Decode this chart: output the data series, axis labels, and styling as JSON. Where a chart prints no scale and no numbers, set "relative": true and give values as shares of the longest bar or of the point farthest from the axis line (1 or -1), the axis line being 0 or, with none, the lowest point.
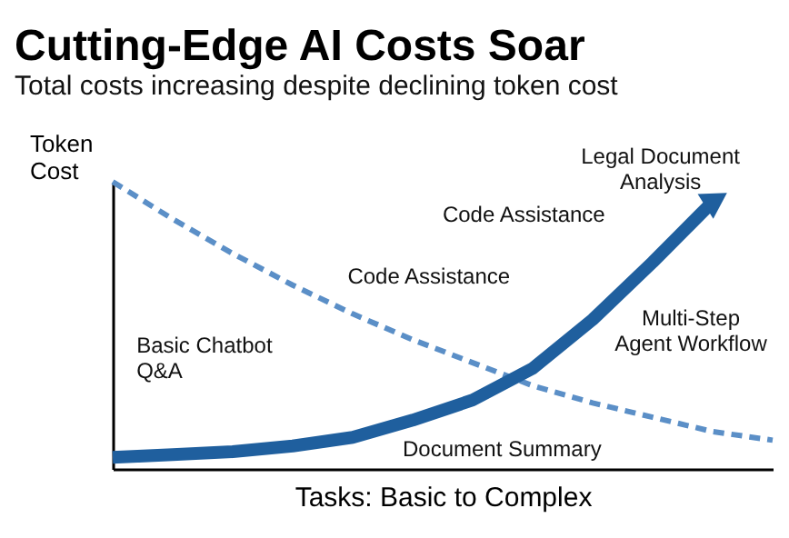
{
  "chart_data": {
    "type": "line",
    "title": "Cutting-Edge AI Costs Soar",
    "subtitle": "Total costs increasing despite declining token cost",
    "xlabel": "Tasks: Basic to Complex",
    "ylabel": "Token Cost",
    "relative": true,
    "grid": false,
    "categories": [
      null,
      null,
      null,
      null,
      null,
      null,
      null,
      null,
      null,
      null,
      null,
      null
    ],
    "series": [
      {
        "color": "#5b8fc7",
        "line_style": "dashed",
        "values": [
          1,
          0.87,
          0.75,
          0.64,
          0.54,
          0.45,
          0.37,
          0.29,
          0.23,
          0.18,
          0.13,
          0.1
        ]
      },
      {
        "color": "#1f5f9e",
        "line_style": "solid",
        "values": [
          0.04,
          0.05,
          0.06,
          0.08,
          0.11,
          0.17,
          0.24,
          0.35,
          0.52,
          0.72,
          0.93,
          null
        ]
      }
    ],
    "annotations": [
      "Legal Document\nAnalysis",
      "Code Assistance",
      "Code Assistance",
      "Multi-Step\nAgent Workflow",
      "Basic Chatbot\nQ&A",
      "Document Summary"
    ]
  }
}
